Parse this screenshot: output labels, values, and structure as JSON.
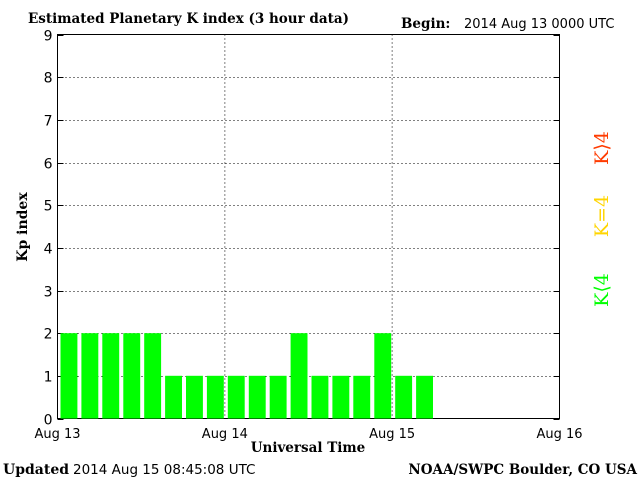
{
  "header": {
    "title": "Estimated Planetary K index (3 hour data)",
    "begin_label": "Begin:",
    "begin_value": "2014 Aug 13 0000 UTC"
  },
  "footer": {
    "updated_label": "Updated",
    "updated_value": "2014 Aug 15 08:45:08 UTC",
    "source": "NOAA/SWPC Boulder, CO USA"
  },
  "legend": {
    "storm": "K⟩4",
    "active": "K=4",
    "quiet": "K⟨4"
  },
  "colors": {
    "bar": "#00ff00",
    "storm": "#ff3b00",
    "active": "#ffd500",
    "quiet": "#00ff00",
    "grid": "#000000"
  },
  "chart_data": {
    "type": "bar",
    "title": "Estimated Planetary K index (3 hour data)",
    "xlabel": "Universal Time",
    "ylabel": "Kp index",
    "ylim": [
      0,
      9
    ],
    "yticks": [
      "0",
      "1",
      "2",
      "3",
      "4",
      "5",
      "6",
      "7",
      "8",
      "9"
    ],
    "xticks": [
      "Aug 13",
      "Aug 14",
      "Aug 15",
      "Aug 16"
    ],
    "interval_hours": 3,
    "grid": true,
    "values": [
      2,
      2,
      2,
      2,
      2,
      1,
      1,
      1,
      1,
      1,
      1,
      2,
      1,
      1,
      1,
      2,
      1,
      1
    ]
  }
}
